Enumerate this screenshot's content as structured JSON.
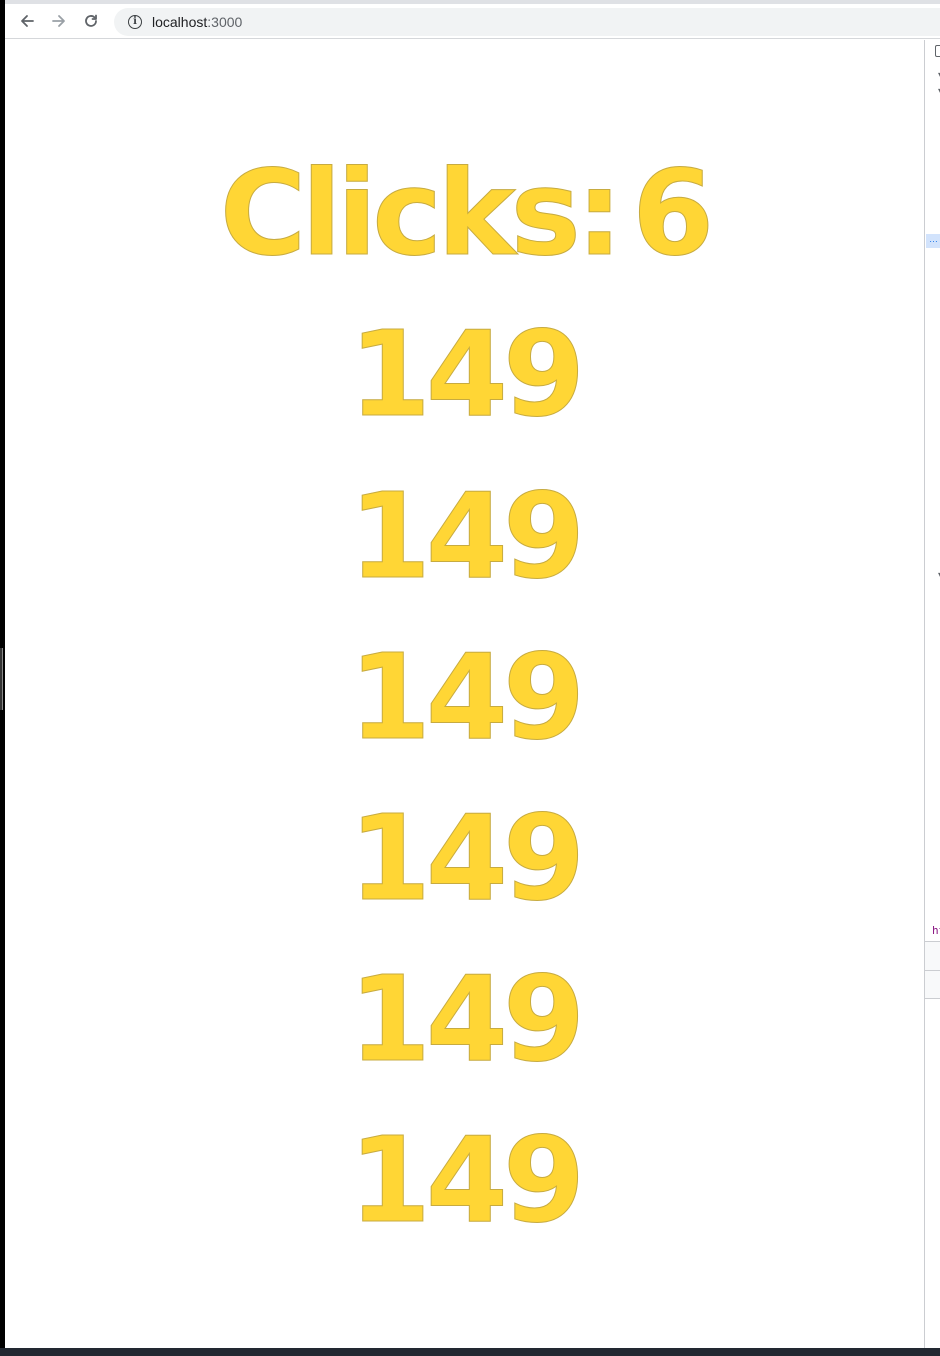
{
  "browser": {
    "url_host": "localhost",
    "url_port": ":3000",
    "back_icon": "arrow-left-icon",
    "forward_icon": "arrow-right-icon",
    "reload_icon": "reload-icon",
    "info_icon": "info-icon"
  },
  "page": {
    "clicks_label": "Clicks:",
    "clicks_value": "6",
    "numbers": [
      "149",
      "149",
      "149",
      "149",
      "149",
      "149"
    ],
    "text_color": "#ffd635"
  },
  "devtools": {
    "ellipsis": "…",
    "tag_fragment": "ht"
  }
}
